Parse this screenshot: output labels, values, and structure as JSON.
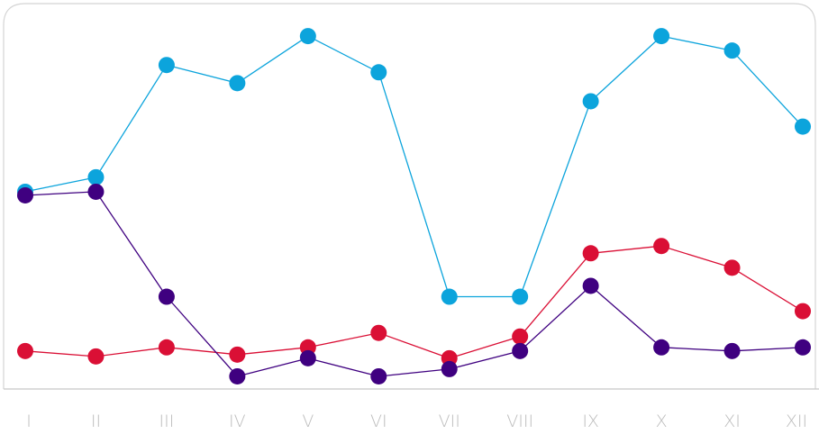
{
  "colors": {
    "frame": "#d4d4d4",
    "axis": "#c8c8c8",
    "tick_label": "#bdbdbd",
    "background": "#ffffff"
  },
  "chart_data": {
    "type": "line",
    "categories": [
      "I",
      "II",
      "III",
      "IV",
      "V",
      "VI",
      "VII",
      "VIII",
      "IX",
      "X",
      "XI",
      "XII"
    ],
    "ylim": [
      0,
      100
    ],
    "grid": false,
    "legend": "none",
    "series": [
      {
        "color": "#0ca4dc",
        "values": [
          53,
          57,
          88,
          83,
          96,
          86,
          24,
          24,
          78,
          96,
          92,
          71
        ]
      },
      {
        "color": "#da0f35",
        "values": [
          9,
          7.5,
          10,
          8,
          10,
          14,
          7,
          13,
          36,
          38,
          32,
          20
        ]
      },
      {
        "color": "#3f0080",
        "values": [
          52,
          53,
          24,
          2,
          7,
          2,
          4,
          9,
          27,
          10,
          9,
          10
        ]
      }
    ]
  }
}
